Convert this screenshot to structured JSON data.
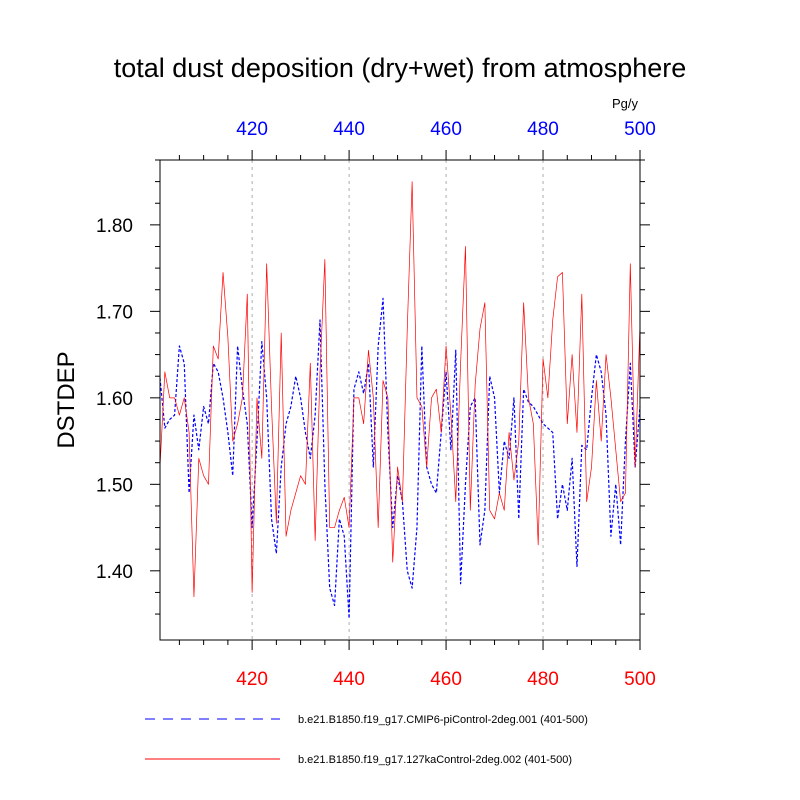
{
  "chart_data": {
    "type": "line",
    "title": "total dust deposition (dry+wet) from atmosphere",
    "ylabel": "DSTDEP",
    "xlabel": "",
    "units": "Pg/y",
    "xlim": [
      401,
      500
    ],
    "ylim": [
      1.32,
      1.875
    ],
    "x_ticks": [
      420,
      440,
      460,
      480,
      500
    ],
    "x_tick_labels": [
      "420",
      "440",
      "460",
      "480",
      "500"
    ],
    "y_ticks": [
      1.4,
      1.5,
      1.6,
      1.7,
      1.8
    ],
    "y_tick_labels": [
      "1.40",
      "1.50",
      "1.60",
      "1.70",
      "1.80"
    ],
    "vertical_gridlines": [
      420,
      440,
      460,
      480
    ],
    "colors": {
      "series_blue": "#0000ff",
      "series_red": "#ff0000",
      "axis_top_labels": "#0000ff",
      "axis_bottom_labels": "#ff0000",
      "grid": "#999999"
    },
    "x": [
      401,
      402,
      403,
      404,
      405,
      406,
      407,
      408,
      409,
      410,
      411,
      412,
      413,
      414,
      415,
      416,
      417,
      418,
      419,
      420,
      421,
      422,
      423,
      424,
      425,
      426,
      427,
      428,
      429,
      430,
      431,
      432,
      433,
      434,
      435,
      436,
      437,
      438,
      439,
      440,
      441,
      442,
      443,
      444,
      445,
      446,
      447,
      448,
      449,
      450,
      451,
      452,
      453,
      454,
      455,
      456,
      457,
      458,
      459,
      460,
      461,
      462,
      463,
      464,
      465,
      466,
      467,
      468,
      469,
      470,
      471,
      472,
      473,
      474,
      475,
      476,
      477,
      478,
      479,
      480,
      481,
      482,
      483,
      484,
      485,
      486,
      487,
      488,
      489,
      490,
      491,
      492,
      493,
      494,
      495,
      496,
      497,
      498,
      499,
      500
    ],
    "series": [
      {
        "name": "b.e21.B1850.f19_g17.CMIP6-piControl-2deg.001 (401-500)",
        "style": "dashed",
        "color": "#0000ff",
        "values": [
          1.623,
          1.565,
          1.575,
          1.58,
          1.66,
          1.64,
          1.49,
          1.58,
          1.54,
          1.59,
          1.57,
          1.64,
          1.63,
          1.6,
          1.56,
          1.51,
          1.66,
          1.61,
          1.57,
          1.45,
          1.55,
          1.665,
          1.6,
          1.46,
          1.42,
          1.52,
          1.57,
          1.59,
          1.625,
          1.6,
          1.56,
          1.53,
          1.58,
          1.69,
          1.5,
          1.38,
          1.36,
          1.46,
          1.44,
          1.345,
          1.61,
          1.63,
          1.605,
          1.64,
          1.52,
          1.66,
          1.715,
          1.56,
          1.45,
          1.51,
          1.48,
          1.4,
          1.38,
          1.45,
          1.66,
          1.52,
          1.5,
          1.49,
          1.56,
          1.63,
          1.54,
          1.655,
          1.385,
          1.5,
          1.59,
          1.6,
          1.43,
          1.47,
          1.625,
          1.6,
          1.49,
          1.55,
          1.53,
          1.6,
          1.46,
          1.61,
          1.595,
          1.59,
          1.58,
          1.57,
          1.565,
          1.56,
          1.46,
          1.5,
          1.47,
          1.53,
          1.405,
          1.545,
          1.54,
          1.6,
          1.65,
          1.63,
          1.58,
          1.44,
          1.5,
          1.43,
          1.55,
          1.64,
          1.52,
          1.59
        ]
      },
      {
        "name": "b.e21.B1850.f19_g17.127kaControl-2deg.002 (401-500)",
        "style": "solid",
        "color": "#ff0000",
        "values": [
          1.52,
          1.63,
          1.6,
          1.6,
          1.58,
          1.6,
          1.56,
          1.37,
          1.53,
          1.51,
          1.5,
          1.66,
          1.645,
          1.745,
          1.67,
          1.55,
          1.57,
          1.6,
          1.72,
          1.375,
          1.6,
          1.53,
          1.755,
          1.59,
          1.455,
          1.675,
          1.44,
          1.47,
          1.49,
          1.51,
          1.5,
          1.64,
          1.435,
          1.63,
          1.76,
          1.45,
          1.45,
          1.47,
          1.485,
          1.45,
          1.6,
          1.6,
          1.57,
          1.655,
          1.6,
          1.45,
          1.62,
          1.6,
          1.41,
          1.52,
          1.48,
          1.68,
          1.85,
          1.6,
          1.59,
          1.52,
          1.6,
          1.61,
          1.56,
          1.66,
          1.58,
          1.48,
          1.64,
          1.775,
          1.47,
          1.615,
          1.68,
          1.71,
          1.47,
          1.46,
          1.49,
          1.47,
          1.56,
          1.505,
          1.55,
          1.71,
          1.6,
          1.57,
          1.43,
          1.645,
          1.6,
          1.69,
          1.74,
          1.745,
          1.57,
          1.65,
          1.56,
          1.72,
          1.48,
          1.52,
          1.62,
          1.55,
          1.65,
          1.6,
          1.54,
          1.48,
          1.49,
          1.755,
          1.52,
          1.685
        ]
      }
    ]
  }
}
